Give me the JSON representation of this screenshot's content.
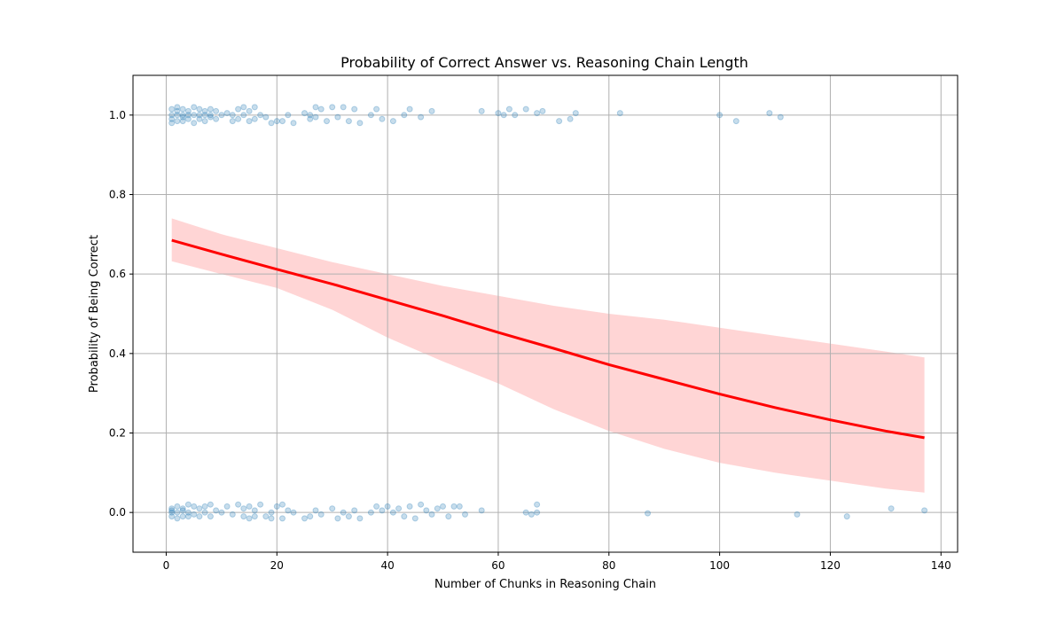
{
  "chart_data": {
    "type": "scatter",
    "title": "Probability of Correct Answer vs. Reasoning Chain Length",
    "xlabel": "Number of Chunks in Reasoning Chain",
    "ylabel": "Probability of Being Correct",
    "xlim": [
      -6,
      143
    ],
    "ylim": [
      -0.1,
      1.1
    ],
    "xticks": [
      0,
      20,
      40,
      60,
      80,
      100,
      120,
      140
    ],
    "yticks": [
      0.0,
      0.2,
      0.4,
      0.6,
      0.8,
      1.0
    ],
    "xtick_labels": [
      "0",
      "20",
      "40",
      "60",
      "80",
      "100",
      "120",
      "140"
    ],
    "ytick_labels": [
      "0.0",
      "0.2",
      "0.4",
      "0.6",
      "0.8",
      "1.0"
    ],
    "grid": true,
    "colors": {
      "points": "#1f77b4",
      "fit_line": "#ff0000",
      "band": "#ffb3b3"
    },
    "series": [
      {
        "kind": "scatter",
        "y_level": 1,
        "x": [
          1,
          1,
          1,
          1,
          2,
          2,
          2,
          2,
          3,
          3,
          3,
          3,
          4,
          4,
          4,
          5,
          5,
          5,
          6,
          6,
          6,
          7,
          7,
          7,
          8,
          8,
          8,
          9,
          9,
          10,
          11,
          12,
          12,
          13,
          13,
          14,
          14,
          15,
          15,
          16,
          16,
          17,
          18,
          19,
          20,
          21,
          22,
          23,
          25,
          26,
          26,
          27,
          27,
          28,
          29,
          30,
          31,
          32,
          33,
          34,
          35,
          37,
          38,
          39,
          41,
          43,
          44,
          46,
          48,
          57,
          60,
          61,
          62,
          63,
          65,
          67,
          68,
          71,
          73,
          74,
          82,
          100,
          103,
          109,
          111
        ],
        "y": [
          1.015,
          1.0,
          0.99,
          0.98,
          1.01,
          1.0,
          0.985,
          1.02,
          1.015,
          0.995,
          0.985,
          1.0,
          1.01,
          0.99,
          1.0,
          1.02,
          0.98,
          1.0,
          1.015,
          0.99,
          1.0,
          1.01,
          0.985,
          1.0,
          1.015,
          0.995,
          1.0,
          1.01,
          0.99,
          1.0,
          1.005,
          0.985,
          1.0,
          1.015,
          0.99,
          1.02,
          1.0,
          0.985,
          1.01,
          1.02,
          0.99,
          1.0,
          0.995,
          0.98,
          0.985,
          0.985,
          1.0,
          0.98,
          1.005,
          0.99,
          1.0,
          1.02,
          0.995,
          1.015,
          0.985,
          1.02,
          0.995,
          1.02,
          0.985,
          1.015,
          0.98,
          1.0,
          1.015,
          0.99,
          0.985,
          1.0,
          1.015,
          0.995,
          1.01,
          1.01,
          1.005,
          1.0,
          1.015,
          1.0,
          1.015,
          1.005,
          1.01,
          0.985,
          0.99,
          1.005,
          1.005,
          1.0,
          0.985,
          1.005,
          0.995
        ]
      },
      {
        "kind": "scatter",
        "y_level": 0,
        "x": [
          1,
          1,
          1,
          1,
          2,
          2,
          2,
          3,
          3,
          3,
          4,
          4,
          4,
          5,
          5,
          6,
          6,
          7,
          7,
          8,
          8,
          9,
          10,
          11,
          12,
          13,
          14,
          14,
          15,
          15,
          16,
          16,
          17,
          18,
          19,
          19,
          20,
          21,
          21,
          22,
          23,
          25,
          26,
          27,
          28,
          30,
          31,
          32,
          33,
          34,
          35,
          37,
          38,
          39,
          40,
          41,
          42,
          43,
          44,
          45,
          46,
          47,
          48,
          49,
          50,
          51,
          52,
          53,
          54,
          57,
          65,
          66,
          67,
          67,
          87,
          114,
          123,
          131,
          137
        ],
        "y": [
          0.01,
          0.0,
          -0.01,
          0.005,
          -0.015,
          0.015,
          0.0,
          0.01,
          -0.01,
          0.005,
          0.02,
          -0.01,
          0.0,
          0.015,
          -0.005,
          0.01,
          -0.01,
          0.0,
          0.015,
          -0.01,
          0.02,
          0.005,
          0.0,
          0.015,
          -0.005,
          0.02,
          0.01,
          -0.01,
          0.015,
          -0.015,
          0.005,
          -0.01,
          0.02,
          -0.01,
          0.0,
          -0.015,
          0.015,
          0.02,
          -0.015,
          0.005,
          0.0,
          -0.015,
          -0.01,
          0.005,
          -0.005,
          0.01,
          -0.015,
          0.0,
          -0.01,
          0.005,
          -0.015,
          0.0,
          0.015,
          0.005,
          0.015,
          0.0,
          0.01,
          -0.01,
          0.015,
          -0.015,
          0.02,
          0.005,
          -0.005,
          0.01,
          0.015,
          -0.01,
          0.015,
          0.015,
          -0.005,
          0.005,
          0.0,
          -0.005,
          0.02,
          0.0,
          -0.002,
          -0.005,
          -0.01,
          0.01,
          0.005
        ]
      },
      {
        "kind": "line",
        "x": [
          1,
          10,
          20,
          30,
          40,
          50,
          60,
          70,
          80,
          90,
          100,
          110,
          120,
          130,
          137
        ],
        "y": [
          0.685,
          0.65,
          0.612,
          0.575,
          0.535,
          0.495,
          0.453,
          0.413,
          0.372,
          0.335,
          0.298,
          0.264,
          0.233,
          0.205,
          0.188
        ]
      },
      {
        "kind": "band",
        "x": [
          1,
          10,
          20,
          30,
          40,
          50,
          60,
          70,
          80,
          90,
          100,
          110,
          120,
          130,
          137
        ],
        "y_lower": [
          0.632,
          0.6,
          0.565,
          0.51,
          0.44,
          0.38,
          0.325,
          0.26,
          0.205,
          0.16,
          0.125,
          0.1,
          0.08,
          0.06,
          0.05
        ],
        "y_upper": [
          0.74,
          0.7,
          0.665,
          0.63,
          0.6,
          0.57,
          0.545,
          0.52,
          0.5,
          0.485,
          0.465,
          0.445,
          0.425,
          0.405,
          0.39
        ]
      }
    ]
  }
}
